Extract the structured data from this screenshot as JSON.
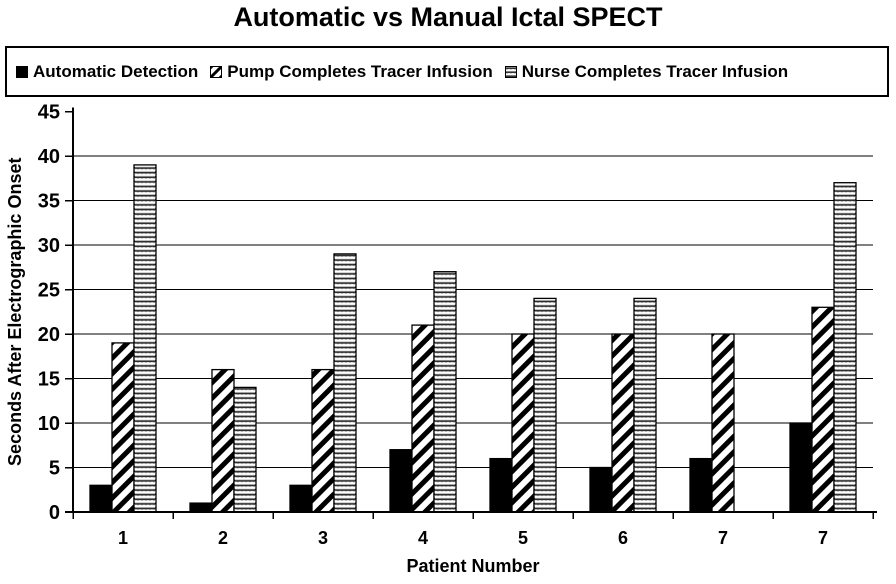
{
  "title": "Automatic vs Manual Ictal SPECT",
  "legend": {
    "items": [
      {
        "label": "Automatic Detection",
        "pattern": "solid"
      },
      {
        "label": "Pump Completes Tracer Infusion",
        "pattern": "diagonal"
      },
      {
        "label": "Nurse Completes Tracer Infusion",
        "pattern": "zigzag"
      }
    ]
  },
  "chart_data": {
    "type": "bar",
    "title": "Automatic vs Manual Ictal SPECT",
    "categories": [
      "1",
      "2",
      "3",
      "4",
      "5",
      "6",
      "7",
      "7"
    ],
    "series": [
      {
        "name": "Automatic Detection",
        "pattern": "solid",
        "values": [
          3,
          1,
          3,
          7,
          6,
          5,
          6,
          10
        ]
      },
      {
        "name": "Pump Completes Tracer Infusion",
        "pattern": "diagonal",
        "values": [
          19,
          16,
          16,
          21,
          20,
          20,
          20,
          23
        ]
      },
      {
        "name": "Nurse Completes Tracer Infusion",
        "pattern": "zigzag",
        "values": [
          39,
          14,
          29,
          27,
          24,
          24,
          null,
          37
        ]
      }
    ],
    "xlabel": "Patient Number",
    "ylabel": "Seconds After Electrographic Onset",
    "ylim": [
      0,
      45
    ],
    "ytick_step": 5,
    "grid": true,
    "legend_position": "top",
    "colors": {
      "foreground": "#000000",
      "background": "#ffffff"
    }
  }
}
